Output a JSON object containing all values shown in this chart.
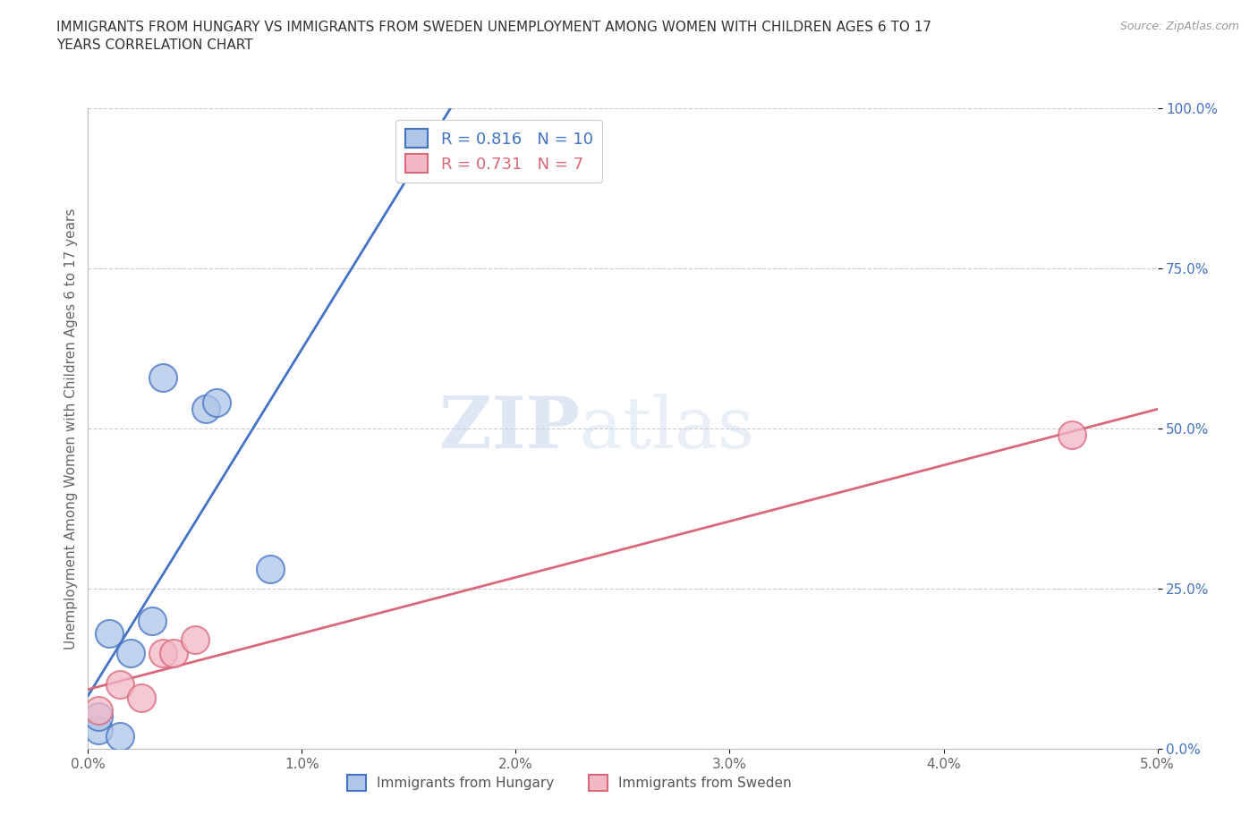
{
  "title": "IMMIGRANTS FROM HUNGARY VS IMMIGRANTS FROM SWEDEN UNEMPLOYMENT AMONG WOMEN WITH CHILDREN AGES 6 TO 17\nYEARS CORRELATION CHART",
  "source": "Source: ZipAtlas.com",
  "ylabel_label": "Unemployment Among Women with Children Ages 6 to 17 years",
  "hungary_x": [
    0.0005,
    0.0005,
    0.001,
    0.0015,
    0.002,
    0.003,
    0.0035,
    0.0055,
    0.006,
    0.0085
  ],
  "hungary_y": [
    0.03,
    0.05,
    0.18,
    0.02,
    0.15,
    0.2,
    0.58,
    0.53,
    0.54,
    0.28
  ],
  "sweden_x": [
    0.0005,
    0.0015,
    0.0025,
    0.0035,
    0.004,
    0.005,
    0.046
  ],
  "sweden_y": [
    0.06,
    0.1,
    0.08,
    0.15,
    0.15,
    0.17,
    0.49
  ],
  "hungary_color": "#aec6e8",
  "sweden_color": "#f2b8c6",
  "hungary_line_color": "#4472c4",
  "sweden_line_color": "#d9687a",
  "r_hungary": 0.816,
  "n_hungary": 10,
  "r_sweden": 0.731,
  "n_sweden": 7,
  "xlim": [
    0.0,
    0.05
  ],
  "ylim": [
    0.0,
    1.0
  ],
  "xticks": [
    0.0,
    0.01,
    0.02,
    0.03,
    0.04,
    0.05
  ],
  "xtick_labels": [
    "0.0%",
    "1.0%",
    "2.0%",
    "3.0%",
    "4.0%",
    "5.0%"
  ],
  "yticks": [
    0.0,
    0.25,
    0.5,
    0.75,
    1.0
  ],
  "ytick_labels": [
    "0.0%",
    "25.0%",
    "50.0%",
    "75.0%",
    "100.0%"
  ],
  "watermark_zip": "ZIP",
  "watermark_atlas": "atlas",
  "background_color": "#ffffff",
  "grid_color": "#cccccc"
}
